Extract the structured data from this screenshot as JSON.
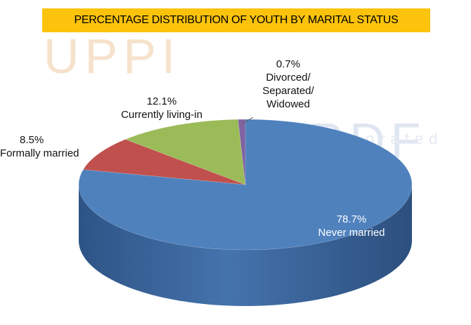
{
  "chart_data": {
    "type": "pie3d",
    "title": "PERCENTAGE DISTRIBUTION OF YOUTH BY MARITAL STATUS",
    "categories": [
      "Never married",
      "Formally married",
      "Currently living-in",
      "Divorced/ Separated/ Widowed"
    ],
    "values": [
      78.7,
      8.5,
      12.1,
      0.7
    ],
    "value_labels": [
      "78.7%",
      "8.5%",
      "12.1%",
      "0.7%"
    ],
    "colors": [
      "#4f81bd",
      "#c0504d",
      "#9bbb59",
      "#8064a2"
    ],
    "watermarks": [
      "UPPI",
      "DRDF",
      "orated"
    ]
  }
}
